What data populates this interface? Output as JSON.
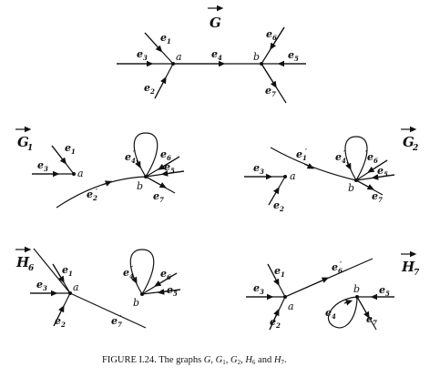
{
  "graphs": [
    {
      "id": "G",
      "title": "G",
      "sub": ""
    },
    {
      "id": "G1",
      "title": "G",
      "sub": "1"
    },
    {
      "id": "G2",
      "title": "G",
      "sub": "2"
    },
    {
      "id": "H6",
      "title": "H",
      "sub": "6"
    },
    {
      "id": "H7",
      "title": "H",
      "sub": "7"
    }
  ],
  "nodes": {
    "a": "a",
    "b": "b"
  },
  "edges": {
    "e1": {
      "base": "e",
      "sub": "1",
      "prime": ""
    },
    "e2": {
      "base": "e",
      "sub": "2",
      "prime": ""
    },
    "e3": {
      "base": "e",
      "sub": "3",
      "prime": ""
    },
    "e4": {
      "base": "e",
      "sub": "4",
      "prime": ""
    },
    "e5": {
      "base": "e",
      "sub": "5",
      "prime": ""
    },
    "e6": {
      "base": "e",
      "sub": "6",
      "prime": ""
    },
    "e7": {
      "base": "e",
      "sub": "7",
      "prime": ""
    },
    "e1p": {
      "base": "e",
      "sub": "1",
      "prime": "′"
    },
    "e2p": {
      "base": "e",
      "sub": "2",
      "prime": "′"
    },
    "e4p": {
      "base": "e",
      "sub": "4",
      "prime": "′"
    },
    "e6p": {
      "base": "e",
      "sub": "6",
      "prime": "′"
    },
    "e7p": {
      "base": "e",
      "sub": "7",
      "prime": "′"
    }
  },
  "caption": {
    "prefix": "FIGURE I.24. The graphs",
    "and": "and"
  }
}
